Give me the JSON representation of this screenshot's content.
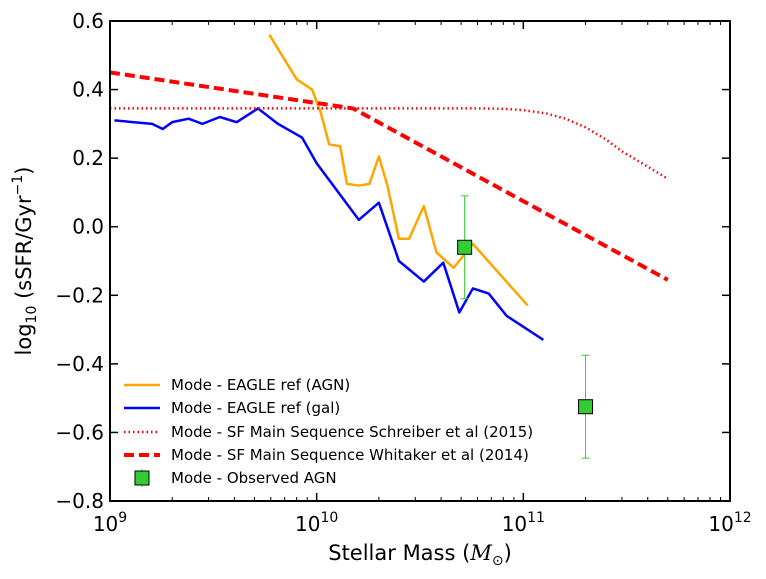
{
  "chart_data": {
    "type": "line",
    "title": "",
    "xlabel": "Stellar Mass",
    "xlabel_unit": "M",
    "xlabel_unit_sub": "⊙",
    "ylabel_prefix": "log",
    "ylabel_sub": "10",
    "ylabel_main": "(sSFR/Gyr",
    "ylabel_sup": "−1",
    "ylabel_close": ")",
    "xscale": "log",
    "xlim": [
      1000000000.0,
      1000000000000.0
    ],
    "ylim": [
      -0.8,
      0.6
    ],
    "x_ticks": [
      {
        "value": 1000000000.0,
        "base": "10",
        "exp": "9"
      },
      {
        "value": 10000000000.0,
        "base": "10",
        "exp": "10"
      },
      {
        "value": 100000000000.0,
        "base": "10",
        "exp": "11"
      },
      {
        "value": 1000000000000.0,
        "base": "10",
        "exp": "12"
      }
    ],
    "y_ticks": [
      {
        "value": 0.6,
        "label": "0.6"
      },
      {
        "value": 0.4,
        "label": "0.4"
      },
      {
        "value": 0.2,
        "label": "0.2"
      },
      {
        "value": 0.0,
        "label": "0.0"
      },
      {
        "value": -0.2,
        "label": "−0.2"
      },
      {
        "value": -0.4,
        "label": "−0.4"
      },
      {
        "value": -0.6,
        "label": "−0.6"
      },
      {
        "value": -0.8,
        "label": "−0.8"
      }
    ],
    "legend_position": "bottom-left",
    "series": [
      {
        "name": "Mode - EAGLE ref (AGN)",
        "style": "solid",
        "color": "#FFA500",
        "x": [
          5900000000.0,
          8000000000.0,
          9500000000.0,
          10500000000.0,
          11500000000.0,
          13000000000.0,
          14000000000.0,
          16000000000.0,
          18000000000.0,
          20000000000.0,
          22000000000.0,
          25000000000.0,
          28000000000.0,
          33000000000.0,
          38000000000.0,
          46000000000.0,
          57000000000.0,
          105000000000.0
        ],
        "y": [
          0.56,
          0.43,
          0.4,
          0.33,
          0.24,
          0.235,
          0.125,
          0.12,
          0.125,
          0.205,
          0.12,
          -0.035,
          -0.035,
          0.06,
          -0.075,
          -0.12,
          -0.05,
          -0.23
        ]
      },
      {
        "name": "Mode - EAGLE ref (gal)",
        "style": "solid",
        "color": "#0000FF",
        "x": [
          1050000000.0,
          1600000000.0,
          1800000000.0,
          2000000000.0,
          2400000000.0,
          2800000000.0,
          3400000000.0,
          4100000000.0,
          5200000000.0,
          6500000000.0,
          8500000000.0,
          10000000000.0,
          16000000000.0,
          20000000000.0,
          25000000000.0,
          33000000000.0,
          41000000000.0,
          49000000000.0,
          57000000000.0,
          68000000000.0,
          83000000000.0,
          125000000000.0
        ],
        "y": [
          0.31,
          0.3,
          0.285,
          0.305,
          0.315,
          0.3,
          0.32,
          0.305,
          0.345,
          0.3,
          0.26,
          0.185,
          0.02,
          0.07,
          -0.1,
          -0.16,
          -0.105,
          -0.25,
          -0.18,
          -0.195,
          -0.26,
          -0.33
        ]
      },
      {
        "name": "Mode - SF Main Sequence Schreiber et al (2015)",
        "style": "dotted",
        "color": "#FF0000",
        "x": [
          1000000000.0,
          2000000000.0,
          5000000000.0,
          10000000000.0,
          30000000000.0,
          60000000000.0,
          80000000000.0,
          100000000000.0,
          130000000000.0,
          160000000000.0,
          200000000000.0,
          250000000000.0,
          300000000000.0,
          400000000000.0,
          500000000000.0
        ],
        "y": [
          0.345,
          0.345,
          0.345,
          0.345,
          0.345,
          0.345,
          0.344,
          0.34,
          0.33,
          0.315,
          0.29,
          0.255,
          0.22,
          0.175,
          0.14
        ]
      },
      {
        "name": "Mode - SF Main Sequence Whitaker et al (2014)",
        "style": "dashed",
        "color": "#FF0000",
        "x": [
          1000000000.0,
          15000000000.0,
          500000000000.0
        ],
        "y": [
          0.45,
          0.345,
          -0.155
        ]
      }
    ],
    "observed": {
      "name": "Mode - Observed AGN",
      "color": "#33CC33",
      "points": [
        {
          "x": 52000000000.0,
          "y": -0.06,
          "err_lo": 0.15,
          "err_hi": 0.15
        },
        {
          "x": 200000000000.0,
          "y": -0.525,
          "err_lo": 0.15,
          "err_hi": 0.15
        }
      ]
    }
  }
}
